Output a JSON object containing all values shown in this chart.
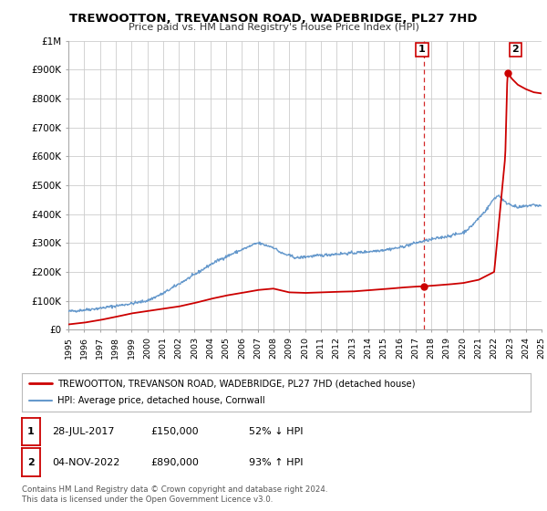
{
  "title": "TREWOOTTON, TREVANSON ROAD, WADEBRIDGE, PL27 7HD",
  "subtitle": "Price paid vs. HM Land Registry's House Price Index (HPI)",
  "ylabel_ticks": [
    "£0",
    "£100K",
    "£200K",
    "£300K",
    "£400K",
    "£500K",
    "£600K",
    "£700K",
    "£800K",
    "£900K",
    "£1M"
  ],
  "ylim": [
    0,
    1000000
  ],
  "xlim_start": 1995,
  "xlim_end": 2025,
  "red_color": "#cc0000",
  "blue_color": "#6699cc",
  "grid_color": "#cccccc",
  "background_color": "#ffffff",
  "legend_red_label": "TREWOOTTON, TREVANSON ROAD, WADEBRIDGE, PL27 7HD (detached house)",
  "legend_blue_label": "HPI: Average price, detached house, Cornwall",
  "annotation1_label": "1",
  "annotation1_date": "28-JUL-2017",
  "annotation1_price": "£150,000",
  "annotation1_hpi": "52% ↓ HPI",
  "annotation2_label": "2",
  "annotation2_date": "04-NOV-2022",
  "annotation2_price": "£890,000",
  "annotation2_hpi": "93% ↑ HPI",
  "footer1": "Contains HM Land Registry data © Crown copyright and database right 2024.",
  "footer2": "This data is licensed under the Open Government Licence v3.0.",
  "marker1_x": 2017.57,
  "marker1_y": 150000,
  "marker2_x": 2022.84,
  "marker2_y": 890000,
  "vline_x": 2017.57
}
